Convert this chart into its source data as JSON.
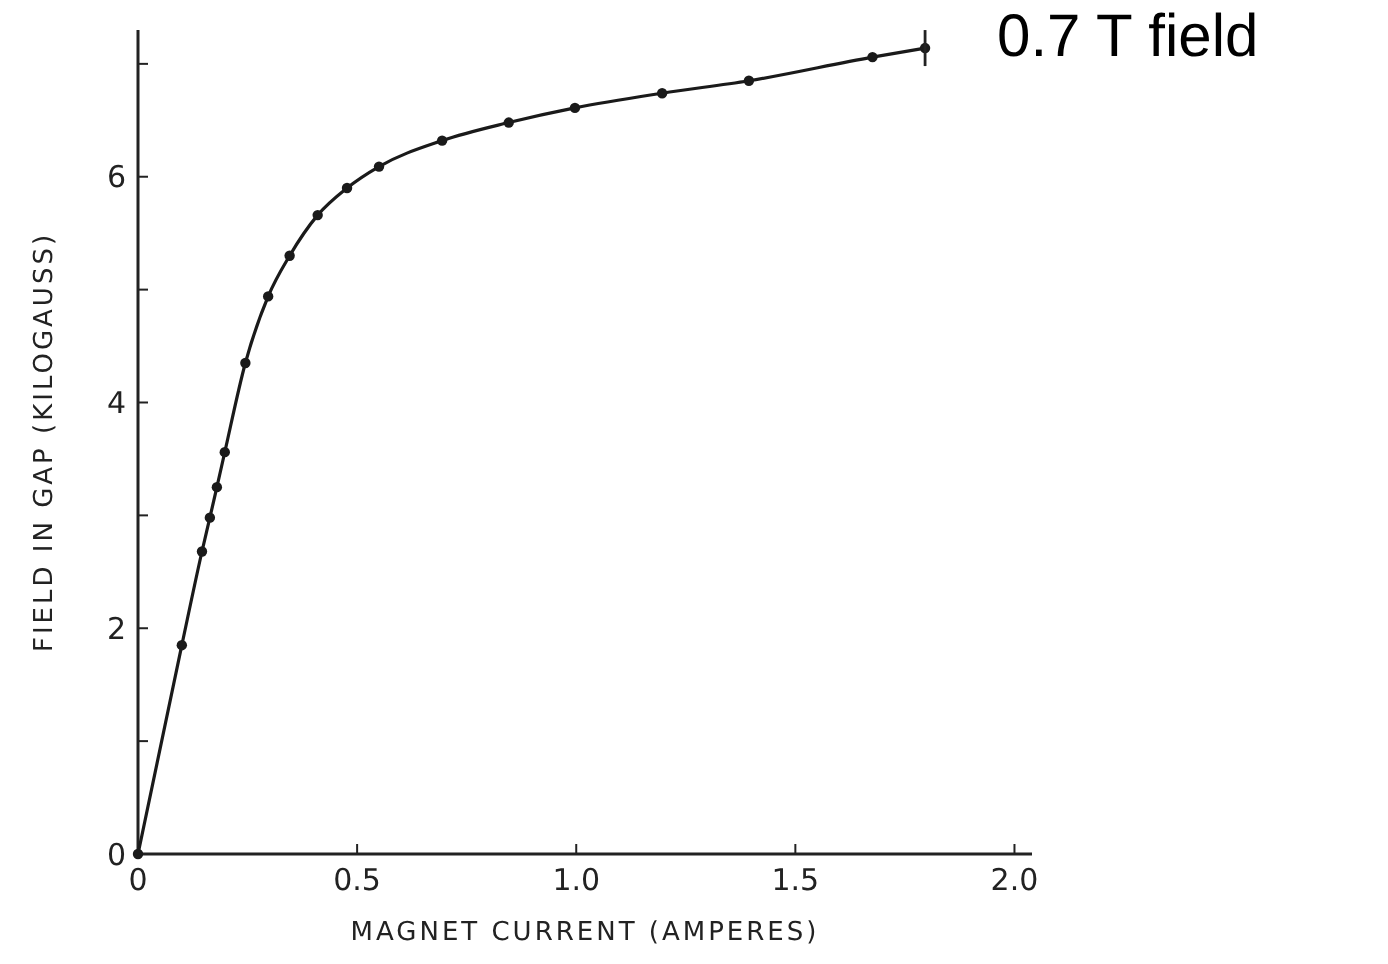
{
  "chart_data": {
    "type": "line",
    "xlabel": "MAGNET CURRENT  (AMPERES)",
    "ylabel": "FIELD IN GAP  (KILOGAUSS)",
    "x": [
      0,
      0.1,
      0.146,
      0.164,
      0.18,
      0.198,
      0.245,
      0.297,
      0.346,
      0.41,
      0.477,
      0.55,
      0.694,
      0.846,
      0.997,
      1.196,
      1.394,
      1.676,
      1.796
    ],
    "series": [
      {
        "color": "#1a1a1a",
        "values": [
          0,
          1.85,
          2.68,
          2.98,
          3.25,
          3.56,
          4.35,
          4.94,
          5.3,
          5.66,
          5.9,
          6.09,
          6.32,
          6.48,
          6.61,
          6.74,
          6.85,
          7.06,
          7.14
        ]
      }
    ],
    "xlim": [
      0,
      2.04
    ],
    "ylim": [
      0,
      7.3
    ],
    "xticks": [
      0,
      {
        "value": 0.5,
        "label": "0.5"
      },
      {
        "value": 1,
        "label": "1.0"
      },
      {
        "value": 1.5,
        "label": "1.5"
      },
      {
        "value": 2,
        "label": "2.0"
      }
    ],
    "yticks": [
      0,
      {
        "value": 1,
        "label": null
      },
      2,
      {
        "value": 3,
        "label": null
      },
      4,
      {
        "value": 5,
        "label": null
      },
      6,
      {
        "value": 7,
        "label": null
      }
    ],
    "marker": "circle",
    "line_style": "solid",
    "annotations": [
      {
        "text": "0.7 T field",
        "x": 1.796,
        "y": 7.14
      }
    ]
  }
}
